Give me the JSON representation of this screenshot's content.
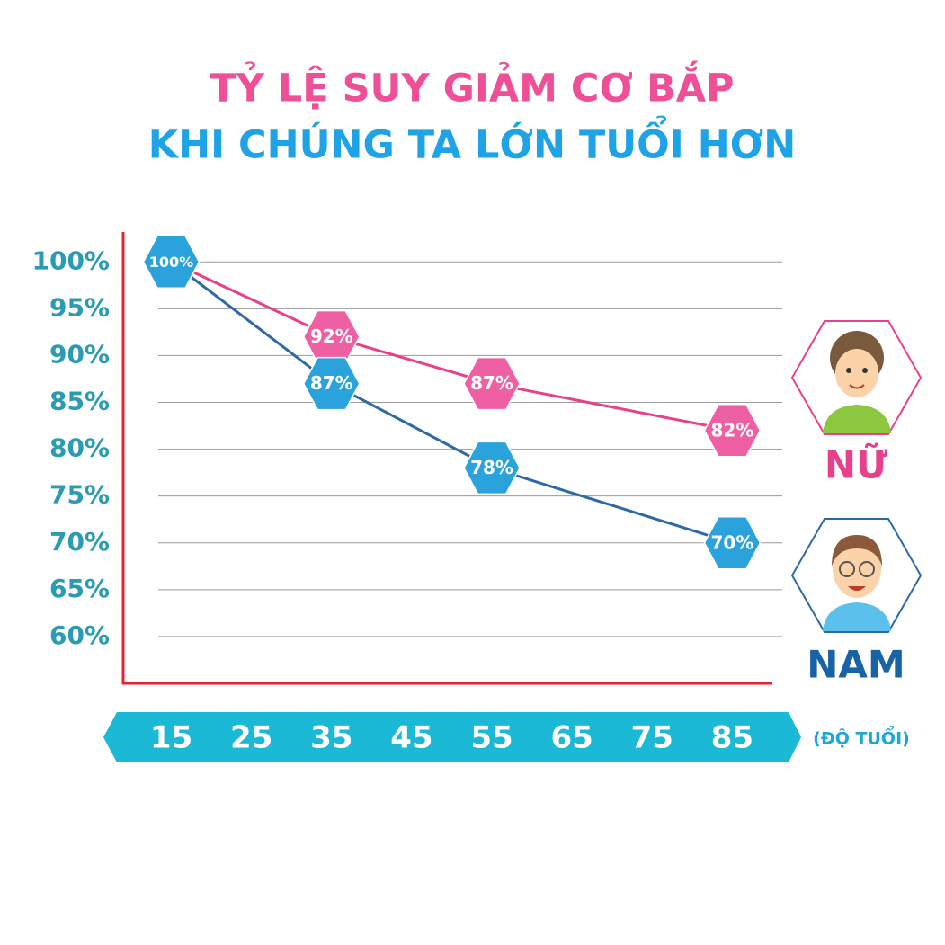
{
  "chart_data": {
    "type": "line",
    "title": "TỶ LỆ SUY GIẢM CƠ BẮP",
    "subtitle": "KHI CHÚNG TA LỚN TUỔI HƠN",
    "x_label": "(ĐỘ TUỔI)",
    "x": [
      15,
      35,
      55,
      85
    ],
    "xlim": [
      9,
      90
    ],
    "xticks": [
      15,
      25,
      35,
      45,
      55,
      65,
      75,
      85
    ],
    "ylim": [
      55,
      103
    ],
    "yticks": [
      {
        "value": 60,
        "label": "60%"
      },
      {
        "value": 65,
        "label": "65%"
      },
      {
        "value": 70,
        "label": "70%"
      },
      {
        "value": 75,
        "label": "75%"
      },
      {
        "value": 80,
        "label": "80%"
      },
      {
        "value": 85,
        "label": "85%"
      },
      {
        "value": 90,
        "label": "90%"
      },
      {
        "value": 95,
        "label": "95%"
      },
      {
        "value": 100,
        "label": "100%"
      }
    ],
    "grid": true,
    "series": [
      {
        "name": "NỮ",
        "color": "#e8408a",
        "marker_color": "#ef5fa4",
        "label_color": "#e8408a",
        "values": [
          100,
          92,
          87,
          82
        ],
        "value_labels": [
          "100%",
          "92%",
          "87%",
          "82%"
        ]
      },
      {
        "name": "NAM",
        "color": "#2b6aa6",
        "marker_color": "#2aa3dd",
        "label_color": "#1862a6",
        "values": [
          100,
          87,
          78,
          70
        ],
        "value_labels": [
          "100%",
          "87%",
          "78%",
          "70%"
        ]
      }
    ]
  }
}
